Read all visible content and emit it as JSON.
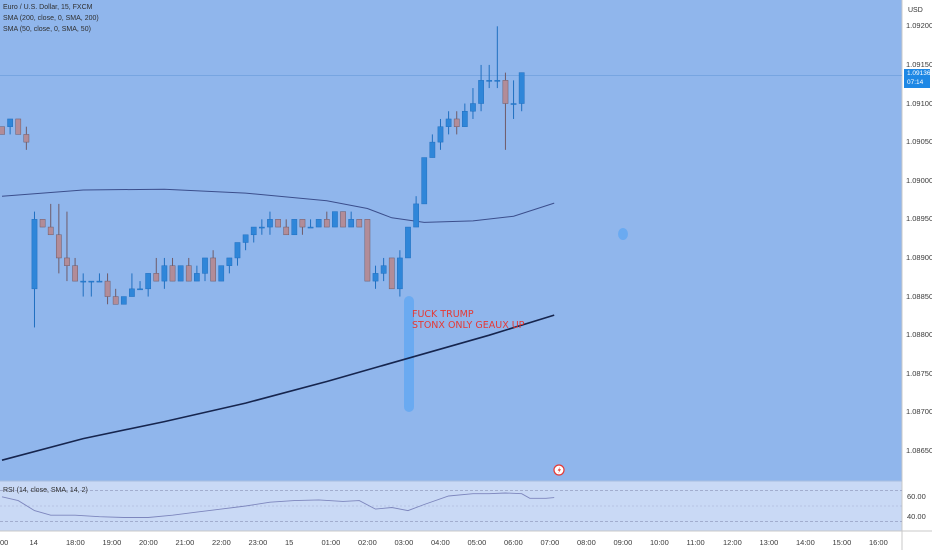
{
  "header": {
    "symbol_line": "Euro / U.S. Dollar, 15, FXCM",
    "sma_200_line": "SMA (200, close, 0, SMA, 200)",
    "sma_50_line": "SMA (50, close, 0, SMA, 50)",
    "currency": "USD"
  },
  "annotation": {
    "line1": "FUCK TRUMP",
    "line2": "STONX ONLY GEAUX UP"
  },
  "price_tag": {
    "price": "1.09136",
    "countdown": "07:14"
  },
  "rsi": {
    "label": "RSI (14, close, SMA, 14, 2)",
    "ticks": [
      "60.00",
      "40.00"
    ]
  },
  "colors": {
    "background": "#90b6ec",
    "up_candle": "#2f86d9",
    "down_candle": "#b28c98",
    "sma_50": "#3b4e8c",
    "sma_200": "#16254e",
    "annotation_text": "#e53935",
    "rsi_line": "#7d86bd",
    "price_tag": "#1e88e5"
  },
  "chart_data": {
    "type": "candlestick",
    "y_range": [
      1.08615,
      1.09225
    ],
    "y_ticks": [
      "1.09200",
      "1.09150",
      "1.09100",
      "1.09050",
      "1.09000",
      "1.08950",
      "1.08900",
      "1.08850",
      "1.08800",
      "1.08750",
      "1.08700",
      "1.08650"
    ],
    "x_ticks": [
      "00",
      "14",
      "18:00",
      "19:00",
      "20:00",
      "21:00",
      "22:00",
      "23:00",
      "15",
      "01:00",
      "02:00",
      "03:00",
      "04:00",
      "05:00",
      "06:00",
      "07:00",
      "08:00",
      "09:00",
      "10:00",
      "11:00",
      "12:00",
      "13:00",
      "14:00",
      "15:00",
      "16:00"
    ],
    "candles": [
      [
        1.0907,
        1.0907,
        1.0906,
        1.0906
      ],
      [
        1.0907,
        1.0908,
        1.0906,
        1.0908
      ],
      [
        1.0908,
        1.0908,
        1.0906,
        1.0906
      ],
      [
        1.0906,
        1.0907,
        1.0904,
        1.0905
      ],
      [
        1.0886,
        1.0896,
        1.0881,
        1.0895
      ],
      [
        1.0895,
        1.0895,
        1.0894,
        1.0894
      ],
      [
        1.0894,
        1.0897,
        1.0893,
        1.0893
      ],
      [
        1.0893,
        1.0897,
        1.0888,
        1.089
      ],
      [
        1.089,
        1.0896,
        1.0887,
        1.0889
      ],
      [
        1.0889,
        1.089,
        1.0887,
        1.0887
      ],
      [
        1.0887,
        1.0888,
        1.0885,
        1.0887
      ],
      [
        1.0887,
        1.0887,
        1.0885,
        1.0887
      ],
      [
        1.0887,
        1.0888,
        1.0887,
        1.0887
      ],
      [
        1.0887,
        1.0888,
        1.0884,
        1.0885
      ],
      [
        1.0885,
        1.0886,
        1.0884,
        1.0884
      ],
      [
        1.0884,
        1.0885,
        1.0884,
        1.0885
      ],
      [
        1.0885,
        1.0888,
        1.0885,
        1.0886
      ],
      [
        1.0886,
        1.0887,
        1.0886,
        1.0886
      ],
      [
        1.0886,
        1.0888,
        1.0885,
        1.0888
      ],
      [
        1.0888,
        1.089,
        1.0887,
        1.0887
      ],
      [
        1.0887,
        1.089,
        1.0886,
        1.0889
      ],
      [
        1.0889,
        1.089,
        1.0887,
        1.0887
      ],
      [
        1.0887,
        1.0889,
        1.0887,
        1.0889
      ],
      [
        1.0889,
        1.089,
        1.0887,
        1.0887
      ],
      [
        1.0887,
        1.0889,
        1.0887,
        1.0888
      ],
      [
        1.0888,
        1.089,
        1.0887,
        1.089
      ],
      [
        1.089,
        1.0891,
        1.0887,
        1.0887
      ],
      [
        1.0887,
        1.0889,
        1.0887,
        1.0889
      ],
      [
        1.0889,
        1.089,
        1.0888,
        1.089
      ],
      [
        1.089,
        1.0892,
        1.0889,
        1.0892
      ],
      [
        1.0892,
        1.0893,
        1.0891,
        1.0893
      ],
      [
        1.0893,
        1.0894,
        1.0892,
        1.0894
      ],
      [
        1.0894,
        1.0895,
        1.0893,
        1.0894
      ],
      [
        1.0894,
        1.0896,
        1.0893,
        1.0895
      ],
      [
        1.0895,
        1.0895,
        1.0894,
        1.0894
      ],
      [
        1.0894,
        1.0895,
        1.0893,
        1.0893
      ],
      [
        1.0893,
        1.0895,
        1.0893,
        1.0895
      ],
      [
        1.0895,
        1.0895,
        1.0893,
        1.0894
      ],
      [
        1.0894,
        1.0895,
        1.0894,
        1.0894
      ],
      [
        1.0894,
        1.0895,
        1.0894,
        1.0895
      ],
      [
        1.0895,
        1.0896,
        1.0894,
        1.0894
      ],
      [
        1.0894,
        1.0896,
        1.0894,
        1.0896
      ],
      [
        1.0896,
        1.0896,
        1.0894,
        1.0894
      ],
      [
        1.0894,
        1.0896,
        1.0894,
        1.0895
      ],
      [
        1.0895,
        1.0895,
        1.0894,
        1.0894
      ],
      [
        1.0895,
        1.0895,
        1.0887,
        1.0887
      ],
      [
        1.0887,
        1.0889,
        1.0886,
        1.0888
      ],
      [
        1.0888,
        1.089,
        1.0887,
        1.0889
      ],
      [
        1.089,
        1.089,
        1.0886,
        1.0886
      ],
      [
        1.0886,
        1.0891,
        1.0885,
        1.089
      ],
      [
        1.089,
        1.0894,
        1.089,
        1.0894
      ],
      [
        1.0894,
        1.0898,
        1.0894,
        1.0897
      ],
      [
        1.0897,
        1.0903,
        1.0897,
        1.0903
      ],
      [
        1.0903,
        1.0906,
        1.0903,
        1.0905
      ],
      [
        1.0905,
        1.0908,
        1.0904,
        1.0907
      ],
      [
        1.0907,
        1.0909,
        1.0906,
        1.0908
      ],
      [
        1.0908,
        1.0909,
        1.0906,
        1.0907
      ],
      [
        1.0907,
        1.091,
        1.0907,
        1.0909
      ],
      [
        1.0909,
        1.0912,
        1.0908,
        1.091
      ],
      [
        1.091,
        1.0915,
        1.0909,
        1.0913
      ],
      [
        1.0913,
        1.0915,
        1.0912,
        1.0913
      ],
      [
        1.0913,
        1.092,
        1.0912,
        1.0913
      ],
      [
        1.0913,
        1.0914,
        1.0904,
        1.091
      ],
      [
        1.091,
        1.0913,
        1.0908,
        1.091
      ],
      [
        1.091,
        1.0914,
        1.0909,
        1.0914
      ]
    ],
    "sma_50": [
      [
        0,
        1.0898
      ],
      [
        10,
        1.08988
      ],
      [
        20,
        1.08989
      ],
      [
        30,
        1.08984
      ],
      [
        40,
        1.08974
      ],
      [
        45,
        1.08964
      ],
      [
        48,
        1.08952
      ],
      [
        52,
        1.08946
      ],
      [
        58,
        1.08948
      ],
      [
        63,
        1.08954
      ],
      [
        68,
        1.08971
      ]
    ],
    "sma_200": [
      [
        0,
        1.08638
      ],
      [
        10,
        1.08666
      ],
      [
        20,
        1.08688
      ],
      [
        30,
        1.08712
      ],
      [
        40,
        1.0874
      ],
      [
        50,
        1.0877
      ],
      [
        60,
        1.088
      ],
      [
        68,
        1.08826
      ]
    ],
    "current_price": 1.09136,
    "rsi_values": [
      [
        0,
        62
      ],
      [
        2,
        57
      ],
      [
        4,
        44
      ],
      [
        6,
        38
      ],
      [
        9,
        38
      ],
      [
        12,
        36
      ],
      [
        15,
        35
      ],
      [
        18,
        35
      ],
      [
        21,
        38
      ],
      [
        24,
        42
      ],
      [
        27,
        46
      ],
      [
        30,
        50
      ],
      [
        33,
        55
      ],
      [
        36,
        57
      ],
      [
        39,
        58
      ],
      [
        42,
        56
      ],
      [
        44,
        57
      ],
      [
        46,
        46
      ],
      [
        48,
        48
      ],
      [
        50,
        44
      ],
      [
        52,
        52
      ],
      [
        55,
        63
      ],
      [
        58,
        66
      ],
      [
        60,
        66
      ],
      [
        62,
        67
      ],
      [
        64,
        66
      ],
      [
        65,
        60
      ],
      [
        67,
        60
      ],
      [
        68,
        61
      ]
    ],
    "rsi_range": [
      20,
      80
    ]
  }
}
